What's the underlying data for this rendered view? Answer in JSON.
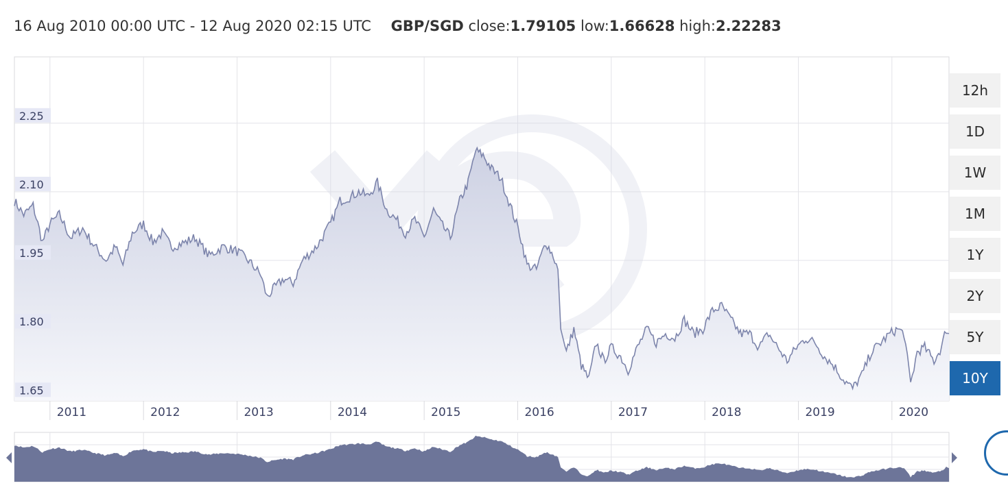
{
  "header": {
    "range_text": "16 Aug 2010 00:00 UTC - 12 Aug 2020 02:15 UTC",
    "pair": "GBP/SGD",
    "close_label": "close:",
    "close_value": "1.79105",
    "low_label": "low:",
    "low_value": "1.66628",
    "high_label": "high:",
    "high_value": "2.22283"
  },
  "range_buttons": [
    {
      "label": "12h",
      "active": false
    },
    {
      "label": "1D",
      "active": false
    },
    {
      "label": "1W",
      "active": false
    },
    {
      "label": "1M",
      "active": false
    },
    {
      "label": "1Y",
      "active": false
    },
    {
      "label": "2Y",
      "active": false
    },
    {
      "label": "5Y",
      "active": false
    },
    {
      "label": "10Y",
      "active": true
    }
  ],
  "colors": {
    "line": "#7c84ab",
    "area_top": "#cdd1e3",
    "area_bottom": "#f6f7fb",
    "grid": "#e3e3e8",
    "navigator_fill": "#6d7599",
    "accent": "#1e68ad"
  },
  "chart_data": {
    "type": "area",
    "title": "",
    "xlabel": "",
    "ylabel": "",
    "xlim": [
      2010.62,
      2020.61
    ],
    "ylim": [
      1.643,
      2.395
    ],
    "ytick_values": [
      1.65,
      1.8,
      1.95,
      2.1,
      2.25
    ],
    "ytick_labels": [
      "1.65",
      "1.80",
      "1.95",
      "2.10",
      "2.25"
    ],
    "xtick_labels": [
      "2011",
      "2012",
      "2013",
      "2014",
      "2015",
      "2016",
      "2017",
      "2018",
      "2019",
      "2020"
    ],
    "grid": true,
    "series": [
      {
        "values": [
          {
            "x": 2010.62,
            "y": 2.08
          },
          {
            "x": 2010.72,
            "y": 2.05
          },
          {
            "x": 2010.82,
            "y": 2.07
          },
          {
            "x": 2010.92,
            "y": 1.99
          },
          {
            "x": 2011.0,
            "y": 2.03
          },
          {
            "x": 2011.1,
            "y": 2.05
          },
          {
            "x": 2011.22,
            "y": 2.0
          },
          {
            "x": 2011.35,
            "y": 2.02
          },
          {
            "x": 2011.48,
            "y": 1.98
          },
          {
            "x": 2011.6,
            "y": 1.95
          },
          {
            "x": 2011.7,
            "y": 1.98
          },
          {
            "x": 2011.78,
            "y": 1.94
          },
          {
            "x": 2011.88,
            "y": 2.01
          },
          {
            "x": 2012.0,
            "y": 2.03
          },
          {
            "x": 2012.1,
            "y": 1.99
          },
          {
            "x": 2012.2,
            "y": 2.01
          },
          {
            "x": 2012.3,
            "y": 1.98
          },
          {
            "x": 2012.45,
            "y": 1.99
          },
          {
            "x": 2012.55,
            "y": 2.0
          },
          {
            "x": 2012.7,
            "y": 1.96
          },
          {
            "x": 2012.85,
            "y": 1.98
          },
          {
            "x": 2013.0,
            "y": 1.97
          },
          {
            "x": 2013.12,
            "y": 1.95
          },
          {
            "x": 2013.25,
            "y": 1.92
          },
          {
            "x": 2013.32,
            "y": 1.87
          },
          {
            "x": 2013.4,
            "y": 1.89
          },
          {
            "x": 2013.5,
            "y": 1.91
          },
          {
            "x": 2013.6,
            "y": 1.9
          },
          {
            "x": 2013.7,
            "y": 1.95
          },
          {
            "x": 2013.85,
            "y": 1.98
          },
          {
            "x": 2014.0,
            "y": 2.03
          },
          {
            "x": 2014.1,
            "y": 2.08
          },
          {
            "x": 2014.22,
            "y": 2.09
          },
          {
            "x": 2014.3,
            "y": 2.1
          },
          {
            "x": 2014.4,
            "y": 2.09
          },
          {
            "x": 2014.5,
            "y": 2.12
          },
          {
            "x": 2014.6,
            "y": 2.06
          },
          {
            "x": 2014.7,
            "y": 2.04
          },
          {
            "x": 2014.8,
            "y": 2.01
          },
          {
            "x": 2014.9,
            "y": 2.04
          },
          {
            "x": 2015.0,
            "y": 2.0
          },
          {
            "x": 2015.1,
            "y": 2.06
          },
          {
            "x": 2015.18,
            "y": 2.03
          },
          {
            "x": 2015.28,
            "y": 2.0
          },
          {
            "x": 2015.38,
            "y": 2.08
          },
          {
            "x": 2015.47,
            "y": 2.12
          },
          {
            "x": 2015.55,
            "y": 2.19
          },
          {
            "x": 2015.63,
            "y": 2.18
          },
          {
            "x": 2015.72,
            "y": 2.15
          },
          {
            "x": 2015.82,
            "y": 2.13
          },
          {
            "x": 2015.92,
            "y": 2.07
          },
          {
            "x": 2016.02,
            "y": 2.01
          },
          {
            "x": 2016.1,
            "y": 1.94
          },
          {
            "x": 2016.2,
            "y": 1.93
          },
          {
            "x": 2016.3,
            "y": 1.99
          },
          {
            "x": 2016.38,
            "y": 1.96
          },
          {
            "x": 2016.43,
            "y": 1.93
          },
          {
            "x": 2016.46,
            "y": 1.8
          },
          {
            "x": 2016.52,
            "y": 1.75
          },
          {
            "x": 2016.6,
            "y": 1.8
          },
          {
            "x": 2016.68,
            "y": 1.72
          },
          {
            "x": 2016.76,
            "y": 1.69
          },
          {
            "x": 2016.84,
            "y": 1.77
          },
          {
            "x": 2016.92,
            "y": 1.73
          },
          {
            "x": 2017.0,
            "y": 1.76
          },
          {
            "x": 2017.1,
            "y": 1.74
          },
          {
            "x": 2017.18,
            "y": 1.71
          },
          {
            "x": 2017.28,
            "y": 1.76
          },
          {
            "x": 2017.38,
            "y": 1.8
          },
          {
            "x": 2017.48,
            "y": 1.77
          },
          {
            "x": 2017.58,
            "y": 1.79
          },
          {
            "x": 2017.68,
            "y": 1.78
          },
          {
            "x": 2017.78,
            "y": 1.82
          },
          {
            "x": 2017.88,
            "y": 1.79
          },
          {
            "x": 2017.98,
            "y": 1.8
          },
          {
            "x": 2018.08,
            "y": 1.84
          },
          {
            "x": 2018.18,
            "y": 1.85
          },
          {
            "x": 2018.28,
            "y": 1.82
          },
          {
            "x": 2018.38,
            "y": 1.79
          },
          {
            "x": 2018.48,
            "y": 1.79
          },
          {
            "x": 2018.58,
            "y": 1.76
          },
          {
            "x": 2018.68,
            "y": 1.79
          },
          {
            "x": 2018.78,
            "y": 1.76
          },
          {
            "x": 2018.88,
            "y": 1.73
          },
          {
            "x": 2018.98,
            "y": 1.76
          },
          {
            "x": 2019.08,
            "y": 1.78
          },
          {
            "x": 2019.18,
            "y": 1.77
          },
          {
            "x": 2019.28,
            "y": 1.74
          },
          {
            "x": 2019.38,
            "y": 1.72
          },
          {
            "x": 2019.48,
            "y": 1.69
          },
          {
            "x": 2019.58,
            "y": 1.67
          },
          {
            "x": 2019.68,
            "y": 1.7
          },
          {
            "x": 2019.78,
            "y": 1.75
          },
          {
            "x": 2019.88,
            "y": 1.77
          },
          {
            "x": 2019.98,
            "y": 1.79
          },
          {
            "x": 2020.06,
            "y": 1.8
          },
          {
            "x": 2020.13,
            "y": 1.79
          },
          {
            "x": 2020.2,
            "y": 1.68
          },
          {
            "x": 2020.27,
            "y": 1.75
          },
          {
            "x": 2020.35,
            "y": 1.76
          },
          {
            "x": 2020.45,
            "y": 1.73
          },
          {
            "x": 2020.53,
            "y": 1.76
          },
          {
            "x": 2020.58,
            "y": 1.8
          },
          {
            "x": 2020.61,
            "y": 1.79
          }
        ]
      }
    ],
    "navigator": {
      "type": "area",
      "xlim": [
        2010.62,
        2020.61
      ],
      "ylim": [
        1.62,
        2.24
      ]
    }
  }
}
